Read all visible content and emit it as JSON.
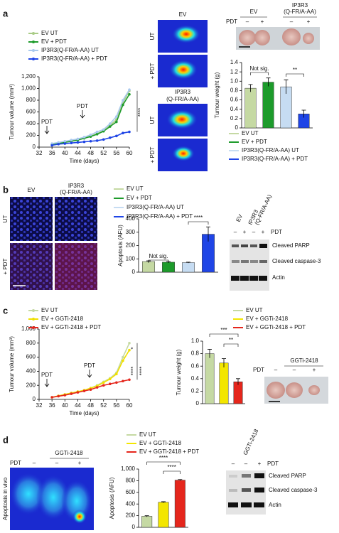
{
  "panel_labels": [
    "a",
    "b",
    "c",
    "d"
  ],
  "panel_a": {
    "image_top": "EV",
    "image_bottom": [
      "IP3R3",
      "(Q-FR/A-AA)"
    ],
    "image_rows": [
      "UT",
      "+ PDT",
      "UT",
      "+ PDT"
    ],
    "photo_groups": [
      "EV",
      "IP3R3",
      "(Q-FR/A-AA)"
    ],
    "photo_pdt": "PDT",
    "photo_signs": [
      "–",
      "+",
      "–",
      "+"
    ]
  },
  "panel_b": {
    "image_cols": [
      "EV",
      "IP3R3",
      "(Q-FR/A-AA)"
    ],
    "image_rows": [
      "UT",
      "+ PDT"
    ],
    "blot_groups": [
      "EV",
      "IP3R3",
      "(Q-FR/A-AA)"
    ],
    "blot_signs": [
      "–",
      "+",
      "–",
      "+"
    ],
    "blot_pdt": "PDT",
    "blot_bands": [
      "Cleaved PARP",
      "Cleaved caspase-3",
      "Actin"
    ]
  },
  "panel_c": {
    "photo_group": "GGTi-2418",
    "photo_pdt": "PDT",
    "photo_signs": [
      "–",
      "–",
      "+"
    ]
  },
  "panel_d": {
    "image_group": "GGTi-2418",
    "image_pdt": "PDT",
    "image_signs": [
      "–",
      "–",
      "+"
    ],
    "image_row": "Apoptosis in vivo",
    "blot_group": "GGTi-2418",
    "blot_signs": [
      "–",
      "–",
      "+"
    ],
    "blot_pdt": "PDT",
    "blot_bands": [
      "Cleaved PARP",
      "Cleaved caspase-3",
      "Actin"
    ]
  },
  "chart_data": [
    {
      "type": "line",
      "x_label": "Time (days)",
      "y_label": "Tumour volume (mm³)",
      "xlim": [
        32,
        60
      ],
      "xticks": [
        32,
        36,
        40,
        44,
        48,
        52,
        56,
        60
      ],
      "ylim": [
        0,
        1200
      ],
      "yticks": [
        0,
        200,
        400,
        600,
        800,
        {
          "value": 1000,
          "label": "1,000"
        },
        {
          "value": 1200,
          "label": "1,200"
        }
      ],
      "x": [
        36,
        38,
        40,
        42,
        44,
        46,
        48,
        50,
        52,
        54,
        56,
        58,
        60
      ],
      "series": [
        {
          "name": "EV UT",
          "color": "#a9cc86",
          "values": [
            50,
            70,
            90,
            110,
            130,
            160,
            190,
            230,
            280,
            370,
            470,
            760,
            960
          ]
        },
        {
          "name": "EV + PDT",
          "color": "#1d9b2b",
          "values": [
            40,
            60,
            80,
            100,
            120,
            150,
            180,
            220,
            270,
            350,
            430,
            720,
            900
          ]
        },
        {
          "name": "IP3R3(Q-FR/A-AA) UT",
          "color": "#a9c9ee",
          "values": [
            60,
            80,
            100,
            120,
            140,
            170,
            210,
            260,
            300,
            400,
            520,
            800,
            980
          ]
        },
        {
          "name": "IP3R3(Q-FR/A-AA) + PDT",
          "color": "#1f45e6",
          "values": [
            30,
            50,
            60,
            70,
            80,
            90,
            100,
            110,
            130,
            160,
            190,
            240,
            260
          ]
        }
      ],
      "annotations": [
        "PDT",
        "PDT",
        "****"
      ]
    },
    {
      "type": "bar",
      "y_label": "Tumour weight (g)",
      "categories": [
        null,
        null,
        null,
        null
      ],
      "values": [
        0.85,
        0.98,
        0.88,
        0.3
      ],
      "errors": [
        0.08,
        0.09,
        0.15,
        0.08
      ],
      "colors": [
        "#c5d9a3",
        "#1d9b2b",
        "#c6dcf2",
        "#1f45e6"
      ],
      "legend_labels": [
        "EV UT",
        "EV + PDT",
        "IP3R3(Q-FR/A-AA) UT",
        "IP3R3(Q-FR/A-AA) + PDT"
      ],
      "ylim": [
        0,
        1.4
      ],
      "yticks": [
        0,
        0.2,
        0.4,
        0.6,
        0.8,
        {
          "value": 1,
          "label": "1.0"
        },
        1.2,
        1.4
      ],
      "annotations": [
        "Not sig.",
        "**"
      ]
    },
    {
      "type": "bar",
      "y_label": "Apoptosis (AFU)",
      "categories": [
        null,
        null,
        null,
        null
      ],
      "values": [
        80,
        75,
        72,
        285
      ],
      "errors": [
        5,
        5,
        3,
        55
      ],
      "colors": [
        "#c5d9a3",
        "#1d9b2b",
        "#c6dcf2",
        "#1f45e6"
      ],
      "legend_labels": [
        "EV UT",
        "EV + PDT",
        "IP3R3(Q-FR/A-AA) UT",
        "IP3R3(Q-FR/A-AA) + PDT"
      ],
      "ylim": [
        0,
        400
      ],
      "yticks": [
        0,
        100,
        200,
        300,
        400
      ],
      "annotations": [
        "Not sig.",
        "****"
      ]
    },
    {
      "type": "line",
      "x_label": "Time (days)",
      "y_label": "Tumour volume (mm³)",
      "xlim": [
        32,
        60
      ],
      "xticks": [
        32,
        36,
        40,
        44,
        48,
        52,
        56,
        60
      ],
      "ylim": [
        0,
        1000
      ],
      "yticks": [
        0,
        200,
        400,
        600,
        800,
        {
          "value": 1000,
          "label": "1,000"
        }
      ],
      "x": [
        36,
        38,
        40,
        42,
        44,
        46,
        48,
        50,
        52,
        54,
        56,
        58,
        60
      ],
      "series": [
        {
          "name": "EV UT",
          "color": "#c5d9a3",
          "values": [
            30,
            50,
            70,
            90,
            110,
            130,
            160,
            200,
            250,
            300,
            380,
            600,
            800
          ]
        },
        {
          "name": "EV + GGTi-2418",
          "color": "#f0e000",
          "values": [
            30,
            50,
            70,
            90,
            110,
            130,
            160,
            190,
            240,
            290,
            360,
            550,
            700
          ]
        },
        {
          "name": "EV + GGTi-2418 + PDT",
          "color": "#e5261c",
          "values": [
            30,
            45,
            60,
            80,
            100,
            120,
            140,
            170,
            200,
            220,
            240,
            260,
            280
          ]
        }
      ],
      "annotations": [
        "PDT",
        "PDT",
        "*",
        "****",
        "****"
      ]
    },
    {
      "type": "bar",
      "y_label": "Tumour weight (g)",
      "categories": [
        null,
        null,
        null
      ],
      "values": [
        0.8,
        0.65,
        0.35
      ],
      "errors": [
        0.07,
        0.07,
        0.05
      ],
      "colors": [
        "#c5d9a3",
        "#f3e600",
        "#e5261c"
      ],
      "legend_labels": [
        "EV UT",
        "EV + GGTi-2418",
        "EV + GGTi-2418 + PDT"
      ],
      "ylim": [
        0,
        1
      ],
      "yticks": [
        0,
        0.2,
        0.4,
        0.6,
        0.8,
        {
          "value": 1,
          "label": "1.0"
        }
      ],
      "annotations": [
        "***",
        "**"
      ]
    },
    {
      "type": "bar",
      "y_label": "Apoptosis (AFU)",
      "categories": [
        null,
        null,
        null
      ],
      "values": [
        190,
        430,
        810
      ],
      "errors": [
        10,
        10,
        10
      ],
      "colors": [
        "#c5d9a3",
        "#f3e600",
        "#e5261c"
      ],
      "legend_labels": [
        "EV UT",
        "EV + GGTi-2418",
        "EV + GGTi-2418 + PDT"
      ],
      "ylim": [
        0,
        1000
      ],
      "yticks": [
        0,
        200,
        400,
        600,
        800,
        {
          "value": 1000,
          "label": "1,000"
        }
      ],
      "annotations": [
        "****",
        "****"
      ]
    }
  ]
}
